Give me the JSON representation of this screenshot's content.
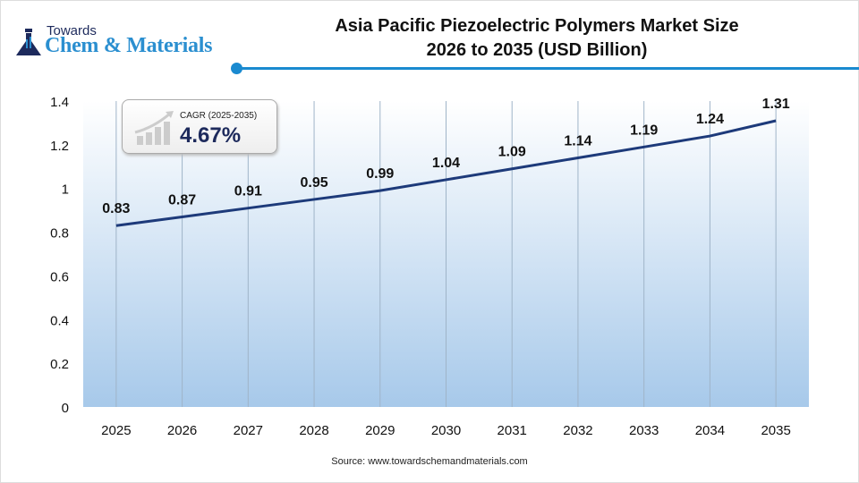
{
  "logo": {
    "line1": "Towards",
    "line2": "Chem & Materials"
  },
  "title": {
    "line1": "Asia Pacific Piezoelectric Polymers Market Size",
    "line2": "2026 to 2035 (USD Billion)"
  },
  "cagr": {
    "label": "CAGR (2025-2035)",
    "value": "4.67%",
    "icon": "rising-bar-chart-icon"
  },
  "source": "Source: www.towardschemandmaterials.com",
  "colors": {
    "line": "#1d3a7a",
    "accent": "#1a8ad0",
    "area_bottom": "#a7c9ea",
    "area_top": "#ffffff"
  },
  "chart_data": {
    "type": "line",
    "categories": [
      "2025",
      "2026",
      "2027",
      "2028",
      "2029",
      "2030",
      "2031",
      "2032",
      "2033",
      "2034",
      "2035"
    ],
    "values": [
      0.83,
      0.87,
      0.91,
      0.95,
      0.99,
      1.04,
      1.09,
      1.14,
      1.19,
      1.24,
      1.31
    ],
    "data_labels": [
      "0.83",
      "0.87",
      "0.91",
      "0.95",
      "0.99",
      "1.04",
      "1.09",
      "1.14",
      "1.19",
      "1.24",
      "1.31"
    ],
    "yticks": [
      "0",
      "0.2",
      "0.4",
      "0.6",
      "0.8",
      "1",
      "1.2",
      "1.4"
    ],
    "ylim": [
      0,
      1.4
    ],
    "grid": "vertical",
    "legend": "none"
  }
}
